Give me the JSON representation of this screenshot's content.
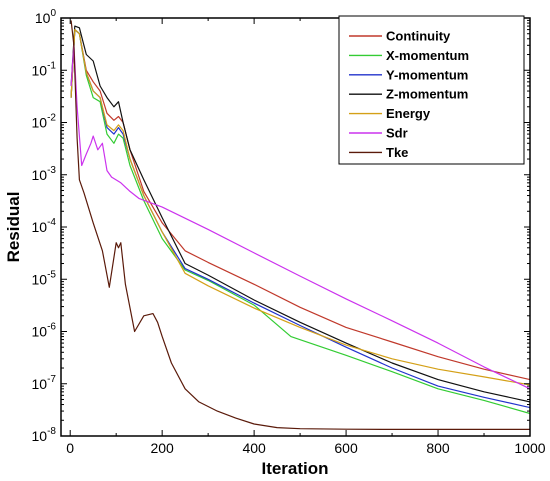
{
  "chart_data": {
    "type": "line",
    "xlabel": "Iteration",
    "ylabel": "Residual",
    "x_scale": "linear",
    "y_scale": "log",
    "xlim": [
      -20,
      1000
    ],
    "ylim": [
      1e-08,
      1
    ],
    "x_ticks": [
      0,
      200,
      400,
      600,
      800,
      1000
    ],
    "x_tick_labels": [
      "0",
      "200",
      "400",
      "600",
      "800",
      "1000"
    ],
    "y_ticks": [
      1e-08,
      1e-07,
      1e-06,
      1e-05,
      0.0001,
      0.001,
      0.01,
      0.1,
      1
    ],
    "y_tick_labels": [
      {
        "base": "10",
        "exp": "-8"
      },
      {
        "base": "10",
        "exp": "-7"
      },
      {
        "base": "10",
        "exp": "-6"
      },
      {
        "base": "10",
        "exp": "-5"
      },
      {
        "base": "10",
        "exp": "-4"
      },
      {
        "base": "10",
        "exp": "-3"
      },
      {
        "base": "10",
        "exp": "-2"
      },
      {
        "base": "10",
        "exp": "-1"
      },
      {
        "base": "10",
        "exp": "0"
      }
    ],
    "grid": false,
    "legend_position": "top-right",
    "series": [
      {
        "name": "Continuity",
        "color": "#c0392b",
        "x": [
          2,
          10,
          20,
          35,
          50,
          65,
          80,
          95,
          105,
          115,
          130,
          160,
          200,
          250,
          300,
          400,
          500,
          600,
          700,
          800,
          900,
          1000
        ],
        "y": [
          0.03,
          0.6,
          0.5,
          0.1,
          0.06,
          0.04,
          0.015,
          0.011,
          0.013,
          0.01,
          0.003,
          0.00048,
          0.00012,
          3.5e-05,
          2.1e-05,
          8e-06,
          2.9e-06,
          1.2e-06,
          6.3e-07,
          3.3e-07,
          1.9e-07,
          1.2e-07
        ]
      },
      {
        "name": "X-momentum",
        "color": "#33cc33",
        "x": [
          2,
          10,
          20,
          35,
          50,
          65,
          80,
          95,
          105,
          115,
          130,
          160,
          200,
          250,
          300,
          400,
          480,
          600,
          700,
          800,
          900,
          1000
        ],
        "y": [
          0.03,
          0.6,
          0.5,
          0.08,
          0.03,
          0.025,
          0.006,
          0.004,
          0.006,
          0.005,
          0.0015,
          0.00032,
          6e-05,
          1.5e-05,
          9.5e-06,
          3.2e-06,
          8e-07,
          3.5e-07,
          1.7e-07,
          8e-08,
          4.8e-08,
          2.7e-08
        ]
      },
      {
        "name": "Y-momentum",
        "color": "#2233cc",
        "x": [
          2,
          10,
          20,
          35,
          50,
          65,
          80,
          95,
          105,
          115,
          130,
          160,
          200,
          250,
          300,
          400,
          500,
          600,
          700,
          800,
          900,
          1000
        ],
        "y": [
          0.03,
          0.6,
          0.5,
          0.09,
          0.04,
          0.03,
          0.008,
          0.006,
          0.008,
          0.006,
          0.002,
          0.0004,
          8e-05,
          1.6e-05,
          1e-05,
          3.5e-06,
          1.3e-06,
          5e-07,
          2e-07,
          9e-08,
          5.5e-08,
          3.5e-08
        ]
      },
      {
        "name": "Z-momentum",
        "color": "#111111",
        "x": [
          2,
          10,
          20,
          35,
          50,
          65,
          80,
          95,
          105,
          115,
          130,
          160,
          200,
          250,
          300,
          400,
          500,
          600,
          700,
          800,
          900,
          1000
        ],
        "y": [
          0.05,
          0.7,
          0.65,
          0.2,
          0.15,
          0.05,
          0.03,
          0.02,
          0.025,
          0.01,
          0.003,
          0.0008,
          0.00015,
          2e-05,
          1.2e-05,
          4e-06,
          1.5e-06,
          6e-07,
          2.5e-07,
          1.2e-07,
          7e-08,
          4.5e-08
        ]
      },
      {
        "name": "Energy",
        "color": "#d4a017",
        "x": [
          2,
          10,
          20,
          35,
          50,
          65,
          80,
          95,
          105,
          115,
          130,
          160,
          200,
          250,
          300,
          400,
          500,
          600,
          700,
          800,
          900,
          1000
        ],
        "y": [
          0.03,
          0.6,
          0.5,
          0.09,
          0.04,
          0.03,
          0.009,
          0.007,
          0.009,
          0.007,
          0.002,
          0.0004,
          8e-05,
          1.3e-05,
          7.5e-06,
          2.8e-06,
          1.2e-06,
          5.5e-07,
          3e-07,
          1.9e-07,
          1.35e-07,
          9.5e-08
        ]
      },
      {
        "name": "Sdr",
        "color": "#cc33ee",
        "x": [
          2,
          8,
          15,
          25,
          35,
          45,
          50,
          60,
          70,
          80,
          90,
          110,
          130,
          150,
          200,
          300,
          400,
          500,
          600,
          700,
          800,
          900,
          1000
        ],
        "y": [
          0.05,
          0.3,
          0.02,
          0.0015,
          0.0025,
          0.004,
          0.0055,
          0.003,
          0.004,
          0.0012,
          0.0009,
          0.0007,
          0.00048,
          0.00035,
          0.00024,
          9e-05,
          3.2e-05,
          1.15e-05,
          4.2e-06,
          1.6e-06,
          6e-07,
          2.1e-07,
          8e-08
        ]
      },
      {
        "name": "Tke",
        "color": "#5a1a0a",
        "x": [
          2,
          8,
          15,
          20,
          30,
          50,
          70,
          85,
          100,
          105,
          110,
          120,
          140,
          160,
          180,
          190,
          200,
          220,
          250,
          280,
          320,
          360,
          400,
          450,
          500,
          600,
          700,
          800,
          900,
          1000
        ],
        "y": [
          0.9,
          0.3,
          0.005,
          0.0008,
          0.00045,
          0.00012,
          3.5e-05,
          7e-06,
          5e-05,
          4e-05,
          5e-05,
          8e-06,
          1e-06,
          2e-06,
          2.2e-06,
          1.5e-06,
          8e-07,
          2.5e-07,
          8e-08,
          4.5e-08,
          3e-08,
          2.2e-08,
          1.7e-08,
          1.45e-08,
          1.38e-08,
          1.35e-08,
          1.34e-08,
          1.34e-08,
          1.34e-08,
          1.34e-08
        ]
      }
    ]
  }
}
